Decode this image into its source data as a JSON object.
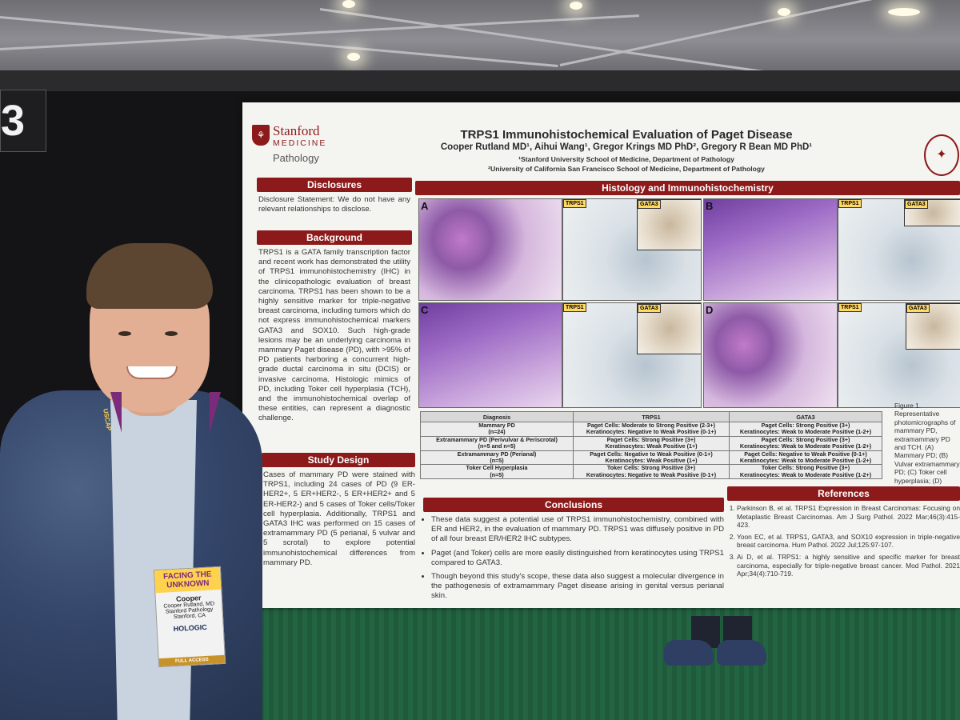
{
  "booth_number": "3",
  "poster": {
    "logo": {
      "stanford": "Stanford",
      "medicine": "MEDICINE",
      "pathology": "Pathology"
    },
    "title": "TRPS1 Immunohistochemical Evaluation of Paget Disease",
    "authors": "Cooper Rutland MD¹, Aihui Wang¹, Gregor Krings MD PhD², Gregory R Bean MD PhD¹",
    "affiliation_1": "¹Stanford University School of Medicine, Department of Pathology",
    "affiliation_2": "²University of California San Francisco School of Medicine, Department of Pathology",
    "disclosures": {
      "heading": "Disclosures",
      "text": "Disclosure Statement: We do not have any relevant relationships to disclose."
    },
    "background": {
      "heading": "Background",
      "text": "TRPS1 is a GATA family transcription factor and recent work has demonstrated the utility of TRPS1 immunohistochemistry (IHC) in the clinicopathologic evaluation of breast carcinoma. TRPS1 has been shown to be a highly sensitive marker for triple-negative breast carcinoma, including tumors which do not express immunohistochemical markers GATA3 and SOX10. Such high-grade lesions may be an underlying carcinoma in mammary Paget disease (PD), with >95% of PD patients harboring a concurrent high-grade ductal carcinoma in situ (DCIS) or invasive carcinoma. Histologic mimics of PD, including Toker cell hyperplasia (TCH), and the immunohistochemical overlap of these entities, can represent a diagnostic challenge."
    },
    "study_design": {
      "heading": "Study Design",
      "text": "Cases of mammary PD were stained with TRPS1, including 24 cases of PD (9 ER-HER2+, 5 ER+HER2-, 5 ER+HER2+ and 5 ER-HER2-) and 5 cases of Toker cells/Toker cell hyperplasia. Additionally, TRPS1 and GATA3 IHC was performed on 15 cases of extramammary PD (5 perianal, 5 vulvar and 5 scrotal) to explore potential immunohistochemical differences from mammary PD."
    },
    "histology": {
      "heading": "Histology and Immunohistochemistry",
      "panel_letters": [
        "A",
        "B",
        "C",
        "D"
      ],
      "stain_trps1": "TRPS1",
      "stain_gata3": "GATA3"
    },
    "table": {
      "headers": [
        "Diagnosis",
        "TRPS1",
        "GATA3"
      ],
      "rows": [
        {
          "diagnosis": "Mammary PD",
          "n": "(n=24)",
          "trps1_a": "Paget Cells: Moderate to Strong Positive (2-3+)",
          "trps1_b": "Keratinocytes: Negative to Weak Positive (0-1+)",
          "gata3_a": "Paget Cells: Strong Positive (3+)",
          "gata3_b": "Keratinocytes: Weak to Moderate Positive (1-2+)"
        },
        {
          "diagnosis": "Extramammary PD (Perivulvar & Periscrotal)",
          "n": "(n=5 and n=5)",
          "trps1_a": "Paget Cells: Strong Positive (3+)",
          "trps1_b": "Keratinocytes: Weak Positive (1+)",
          "gata3_a": "Paget Cells: Strong Positive (3+)",
          "gata3_b": "Keratinocytes: Weak to Moderate Positive (1-2+)"
        },
        {
          "diagnosis": "Extramammary PD (Perianal)",
          "n": "(n=5)",
          "trps1_a": "Paget Cells: Negative to Weak Positive (0-1+)",
          "trps1_b": "Keratinocytes: Weak Positive (1+)",
          "gata3_a": "Paget Cells: Negative to Weak Positive (0-1+)",
          "gata3_b": "Keratinocytes: Weak to Moderate Positive (1-2+)"
        },
        {
          "diagnosis": "Toker Cell Hyperplasia",
          "n": "(n=5)",
          "trps1_a": "Toker Cells: Strong Positive (3+)",
          "trps1_b": "Keratinocytes: Negative to Weak Positive (0-1+)",
          "gata3_a": "Toker Cells: Strong Positive (3+)",
          "gata3_b": "Keratinocytes: Weak to Moderate Positive (1-2+)"
        }
      ]
    },
    "figure_caption": "Figure 1. Representative photomicrographs of mammary PD, extramammary PD and TCH. (A) Mammary PD; (B) Vulvar extramammary PD; (C) Toker cell hyperplasia; (D) Perianal extramammary PD.",
    "conclusions": {
      "heading": "Conclusions",
      "items": [
        "These data suggest a potential use of TRPS1 immunohistochemistry, combined with ER and HER2, in the evaluation of mammary PD. TRPS1 was diffusely positive in PD of all four breast ER/HER2 IHC subtypes.",
        "Paget (and Toker) cells are more easily distinguished from keratinocytes using TRPS1 compared to GATA3.",
        "Though beyond this study's scope, these data also suggest a molecular divergence in the pathogenesis of extramammary Paget disease arising in genital versus perianal skin."
      ]
    },
    "references": {
      "heading": "References",
      "items": [
        "Parkinson B, et al. TRPS1 Expression in Breast Carcinomas: Focusing on Metaplastic Breast Carcinomas. Am J Surg Pathol. 2022 Mar;46(3):415-423.",
        "Yoon EC, et al. TRPS1, GATA3, and SOX10 expression in triple-negative breast carcinoma. Hum Pathol. 2022 Jul;125:97-107.",
        "Ai D, et al. TRPS1: a highly sensitive and specific marker for breast carcinoma, especially for triple-negative breast cancer. Mod Pathol. 2021 Apr;34(4):710-719."
      ]
    }
  },
  "badge": {
    "header": "FACING THE UNKNOWN",
    "first_name": "Cooper",
    "full_name": "Cooper Rutland, MD",
    "org": "Stanford Pathology",
    "location": "Stanford, CA",
    "sponsor": "HOLOGIC",
    "access": "FULL ACCESS"
  },
  "lanyard_text": "USCAP"
}
